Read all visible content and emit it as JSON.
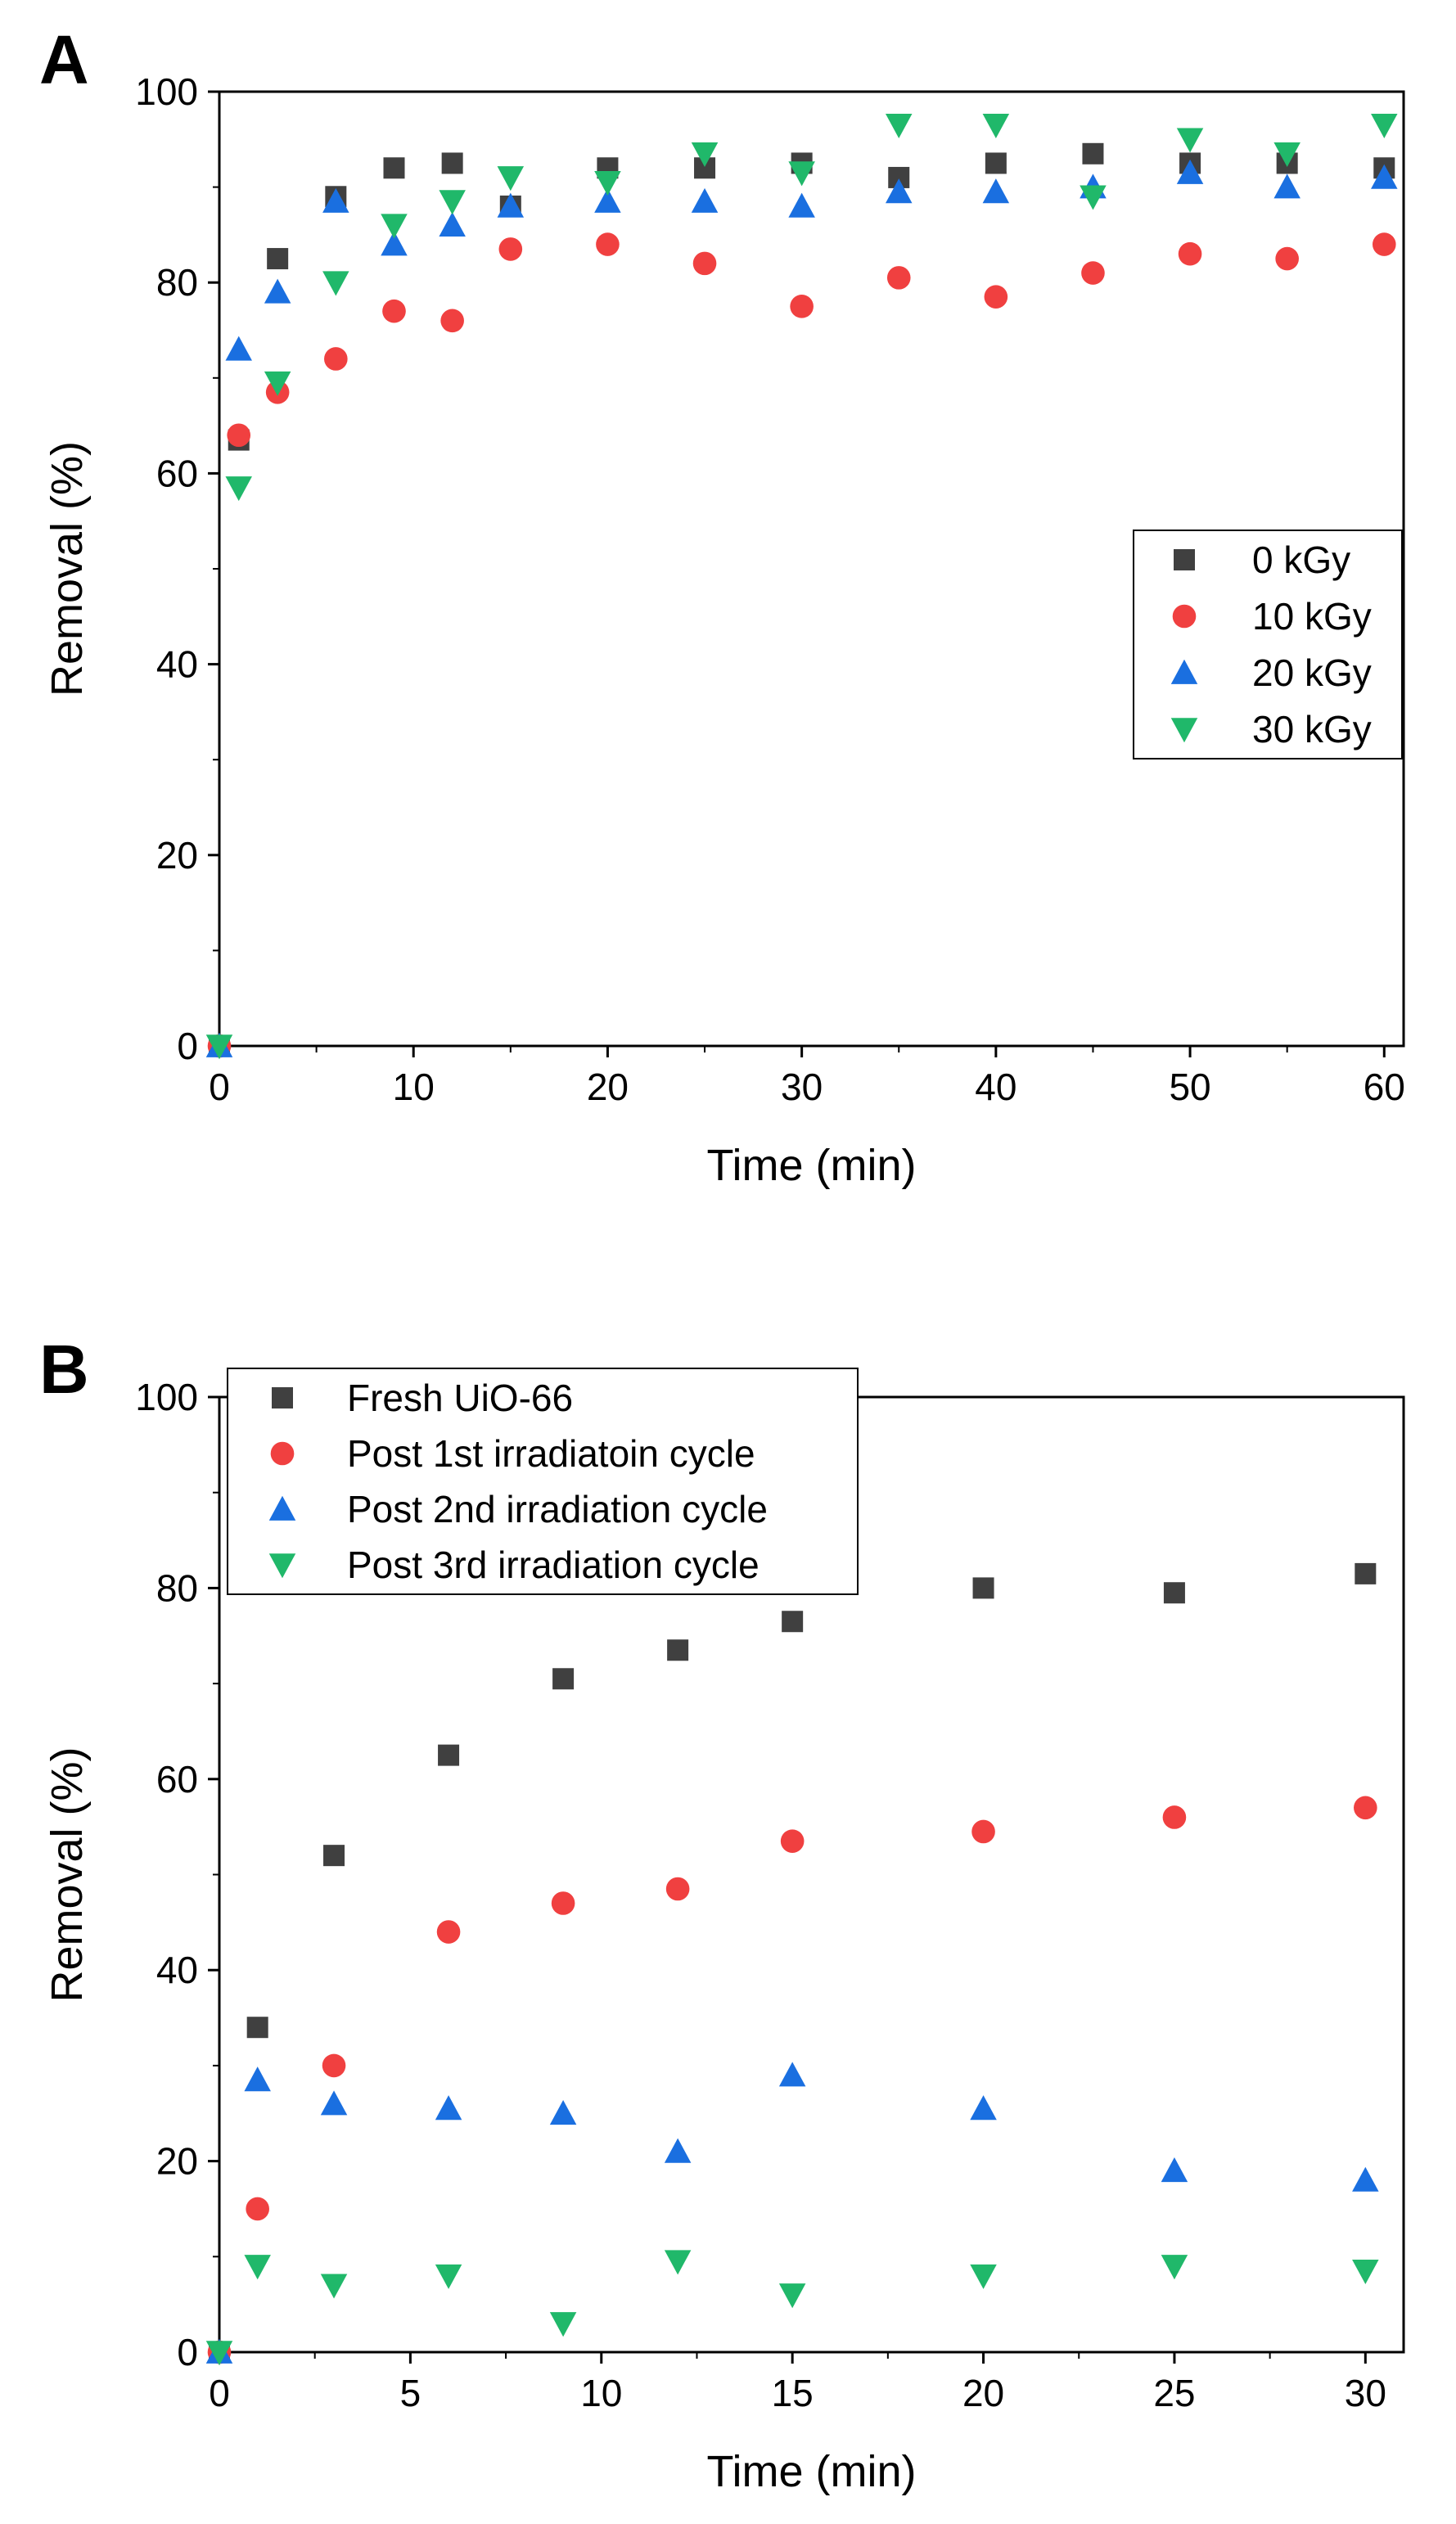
{
  "chart_data": [
    {
      "panel": "A",
      "type": "scatter",
      "xlabel": "Time (min)",
      "ylabel": "Removal (%)",
      "xlim": [
        0,
        61
      ],
      "ylim": [
        0,
        100
      ],
      "xticks": [
        0,
        10,
        20,
        30,
        40,
        50,
        60
      ],
      "yticks": [
        0,
        20,
        40,
        60,
        80,
        100
      ],
      "legend_position": "center-right",
      "series": [
        {
          "name": "0 kGy",
          "marker": "square",
          "color": "#404040",
          "x": [
            0,
            1,
            3,
            6,
            9,
            12,
            15,
            20,
            25,
            30,
            35,
            40,
            45,
            50,
            55,
            60
          ],
          "y": [
            0,
            63.5,
            82.5,
            89,
            92,
            92.5,
            88,
            92,
            92,
            92.5,
            91,
            92.5,
            93.5,
            92.5,
            92.5,
            92
          ]
        },
        {
          "name": "10 kGy",
          "marker": "circle",
          "color": "#f04040",
          "x": [
            0,
            1,
            3,
            6,
            9,
            12,
            15,
            20,
            25,
            30,
            35,
            40,
            45,
            50,
            55,
            60
          ],
          "y": [
            0,
            64,
            68.5,
            72,
            77,
            76,
            83.5,
            84,
            82,
            77.5,
            80.5,
            78.5,
            81,
            83,
            82.5,
            84
          ]
        },
        {
          "name": "20 kGy",
          "marker": "triangle-up",
          "color": "#1a6fe0",
          "x": [
            0,
            1,
            3,
            6,
            9,
            12,
            15,
            20,
            25,
            30,
            35,
            40,
            45,
            50,
            55,
            60
          ],
          "y": [
            0,
            73,
            79,
            88.5,
            84,
            86,
            88,
            88.5,
            88.5,
            88,
            89.5,
            89.5,
            90,
            91.5,
            90,
            91
          ]
        },
        {
          "name": "30 kGy",
          "marker": "triangle-down",
          "color": "#20b86a",
          "x": [
            0,
            1,
            3,
            6,
            9,
            12,
            15,
            20,
            25,
            30,
            35,
            40,
            45,
            50,
            55,
            60
          ],
          "y": [
            0,
            58.5,
            69.5,
            80,
            86,
            88.5,
            91,
            90.5,
            93.5,
            91.5,
            96.5,
            96.5,
            89,
            95,
            93.5,
            96.5
          ]
        }
      ]
    },
    {
      "panel": "B",
      "type": "scatter",
      "xlabel": "Time (min)",
      "ylabel": "Removal (%)",
      "xlim": [
        0,
        31
      ],
      "ylim": [
        0,
        100
      ],
      "xticks": [
        0,
        5,
        10,
        15,
        20,
        25,
        30
      ],
      "yticks": [
        0,
        20,
        40,
        60,
        80,
        100
      ],
      "legend_position": "top-left",
      "series": [
        {
          "name": "Fresh UiO-66",
          "marker": "square",
          "color": "#404040",
          "x": [
            0,
            1,
            3,
            6,
            9,
            12,
            15,
            20,
            25,
            30
          ],
          "y": [
            0,
            34,
            52,
            62.5,
            70.5,
            73.5,
            76.5,
            80,
            79.5,
            81.5
          ]
        },
        {
          "name": "Post 1st irradiatoin cycle",
          "marker": "circle",
          "color": "#f04040",
          "x": [
            0,
            1,
            3,
            6,
            9,
            12,
            15,
            20,
            25,
            30
          ],
          "y": [
            0,
            15,
            30,
            44,
            47,
            48.5,
            53.5,
            54.5,
            56,
            57
          ]
        },
        {
          "name": "Post 2nd irradiation cycle",
          "marker": "triangle-up",
          "color": "#1a6fe0",
          "x": [
            0,
            1,
            3,
            6,
            9,
            12,
            15,
            20,
            25,
            30
          ],
          "y": [
            0,
            28.5,
            26,
            25.5,
            25,
            21,
            29,
            25.5,
            19,
            18
          ]
        },
        {
          "name": "Post 3rd irradiation cycle",
          "marker": "triangle-down",
          "color": "#20b86a",
          "x": [
            0,
            1,
            3,
            6,
            9,
            12,
            15,
            20,
            25,
            30
          ],
          "y": [
            0,
            9,
            7,
            8,
            3,
            9.5,
            6,
            8,
            9,
            8.5
          ]
        }
      ]
    }
  ]
}
